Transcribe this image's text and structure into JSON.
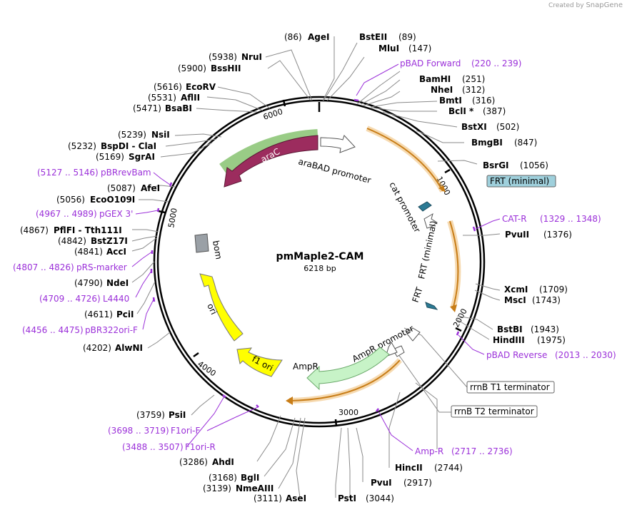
{
  "credit": {
    "prefix": "Created by",
    "brand": "SnapGene"
  },
  "plasmid": {
    "name": "pmMaple2-CAM",
    "length_label": "6218 bp",
    "length": 6218
  },
  "tick_labels": [
    "1000",
    "2000",
    "3000",
    "4000",
    "5000",
    "6000"
  ],
  "sites_right": [
    {
      "name": "AgeI",
      "pos": "(86)"
    },
    {
      "name": "BstEII",
      "pos": "(89)"
    },
    {
      "name": "MluI",
      "pos": "(147)"
    },
    {
      "name": "BamHI",
      "pos": "(251)"
    },
    {
      "name": "NheI",
      "pos": "(312)"
    },
    {
      "name": "BmtI",
      "pos": "(316)"
    },
    {
      "name": "BclI *",
      "pos": "(387)"
    },
    {
      "name": "BstXI",
      "pos": "(502)"
    },
    {
      "name": "BmgBI",
      "pos": "(847)"
    },
    {
      "name": "BsrGI",
      "pos": "(1056)"
    },
    {
      "name": "PvuII",
      "pos": "(1376)"
    },
    {
      "name": "XcmI",
      "pos": "(1709)"
    },
    {
      "name": "MscI",
      "pos": "(1743)"
    },
    {
      "name": "BstBI",
      "pos": "(1943)"
    },
    {
      "name": "HindIII",
      "pos": "(1975)"
    },
    {
      "name": "HincII",
      "pos": "(2744)"
    },
    {
      "name": "PvuI",
      "pos": "(2917)"
    },
    {
      "name": "PstI",
      "pos": "(3044)"
    },
    {
      "name": "AseI",
      "pos": "(3111)"
    }
  ],
  "sites_left": [
    {
      "name": "NruI",
      "pos": "(5938)"
    },
    {
      "name": "BssHII",
      "pos": "(5900)"
    },
    {
      "name": "EcoRV",
      "pos": "(5616)"
    },
    {
      "name": "AflII",
      "pos": "(5531)"
    },
    {
      "name": "BsaBI",
      "pos": "(5471)"
    },
    {
      "name": "NsiI",
      "pos": "(5239)"
    },
    {
      "name": "BspDI - ClaI",
      "pos": "(5232)"
    },
    {
      "name": "SgrAI",
      "pos": "(5169)"
    },
    {
      "name": "AfeI",
      "pos": "(5087)"
    },
    {
      "name": "EcoO109I",
      "pos": "(5056)"
    },
    {
      "name": "PflFI - Tth111I",
      "pos": "(4867)"
    },
    {
      "name": "BstZ17I",
      "pos": "(4842)"
    },
    {
      "name": "AccI",
      "pos": "(4841)"
    },
    {
      "name": "NdeI",
      "pos": "(4790)"
    },
    {
      "name": "PciI",
      "pos": "(4611)"
    },
    {
      "name": "AlwNI",
      "pos": "(4202)"
    },
    {
      "name": "PsiI",
      "pos": "(3759)"
    },
    {
      "name": "AhdI",
      "pos": "(3286)"
    },
    {
      "name": "BglI",
      "pos": "(3168)"
    },
    {
      "name": "NmeAIII",
      "pos": "(3139)"
    }
  ],
  "primers_right": [
    {
      "name": "pBAD Forward",
      "range": "(220 .. 239)"
    },
    {
      "name": "CAT-R",
      "range": "(1329 .. 1348)"
    },
    {
      "name": "pBAD Reverse",
      "range": "(2013 .. 2030)"
    },
    {
      "name": "Amp-R",
      "range": "(2717 .. 2736)"
    }
  ],
  "primers_left": [
    {
      "name": "pBRrevBam",
      "range": "(5127 .. 5146)"
    },
    {
      "name": "pGEX 3'",
      "range": "(4967 .. 4989)"
    },
    {
      "name": "pRS-marker",
      "range": "(4807 .. 4826)"
    },
    {
      "name": "L4440",
      "range": "(4709 .. 4726)"
    },
    {
      "name": "pBR322ori-F",
      "range": "(4456 .. 4475)"
    },
    {
      "name": "F1ori-F",
      "range": "(3698 .. 3719)"
    },
    {
      "name": "F1ori-R",
      "range": "(3488 .. 3507)"
    }
  ],
  "boxed_features": [
    {
      "name": "FRT (minimal)",
      "fill": "#9fd0dc"
    },
    {
      "name": "rrnB T1 terminator",
      "fill": "#ffffff"
    },
    {
      "name": "rrnB T2 terminator",
      "fill": "#ffffff"
    }
  ],
  "features": {
    "araC": "araC",
    "araBAD_promoter": "araBAD promoter",
    "cat_promoter": "cat promoter",
    "frt_minimal": "FRT (minimal)",
    "frt": "FRT",
    "AmpR_promoter": "AmpR promoter",
    "AmpR": "AmpR",
    "f1_ori": "f1 ori",
    "ori": "ori",
    "bom": "bom"
  },
  "colors": {
    "primer": "#9b30d9",
    "araC": "#9c2c5e",
    "araC_halo": "#46a323",
    "cds_halo": "#e8a33b",
    "AmpR": "#c7f3c7",
    "ori": "#ffff00",
    "bom": "#9aa0a6",
    "frt": "#2b7a94"
  }
}
